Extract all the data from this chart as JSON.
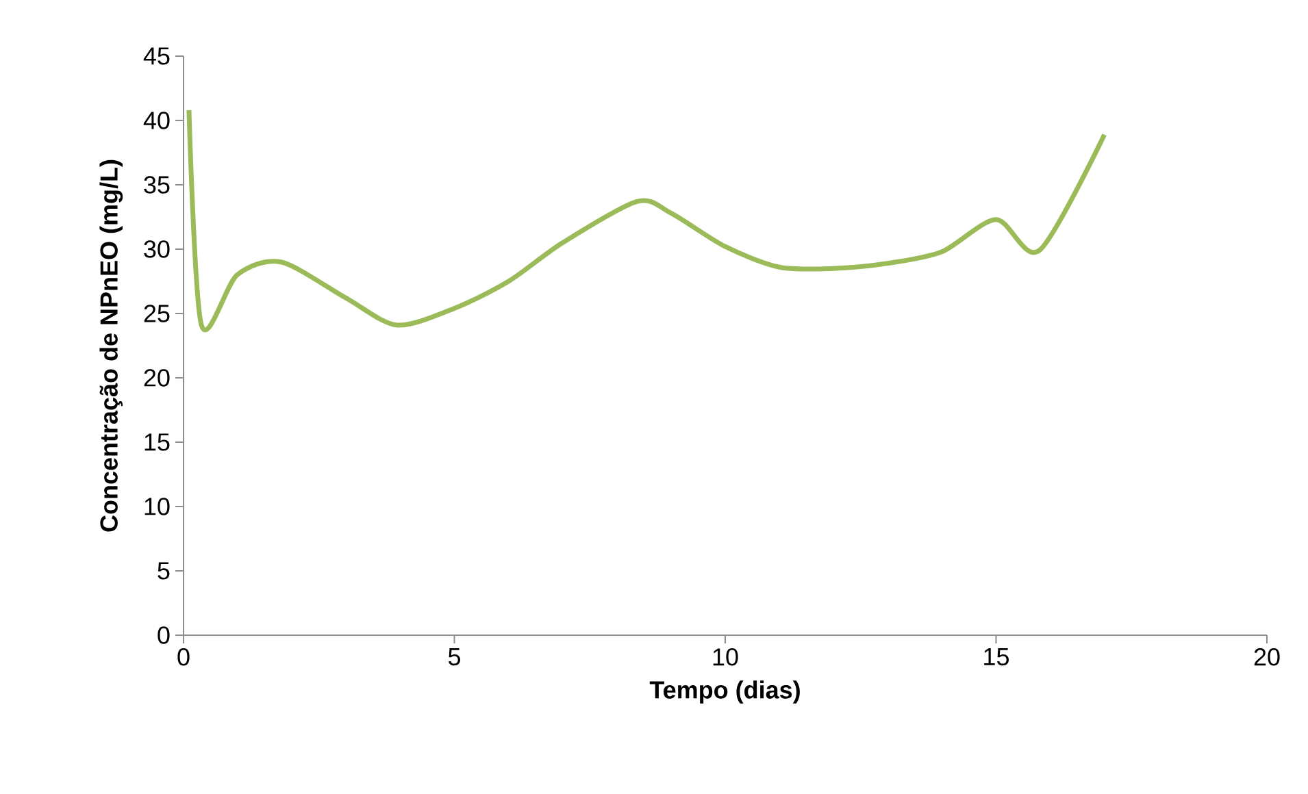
{
  "chart_data": {
    "type": "line",
    "xlabel": "Tempo (dias)",
    "ylabel": "Concentração de NPnEO (mg/L)",
    "x": [
      0.1,
      0.33,
      0.99,
      1.8,
      3.0,
      3.94,
      5.0,
      6.0,
      7.0,
      8.37,
      9.0,
      10.0,
      11.0,
      12.0,
      13.0,
      14.0,
      15.0,
      15.8,
      17.0
    ],
    "series": [
      {
        "color": "#9bbb59",
        "values": [
          40.8,
          24.1,
          28.0,
          29.0,
          26.2,
          24.1,
          25.4,
          27.5,
          30.5,
          33.7,
          32.8,
          30.2,
          28.6,
          28.5,
          28.9,
          29.8,
          32.3,
          29.9,
          38.9
        ]
      }
    ],
    "xlim": [
      0,
      20
    ],
    "xticks": [
      0,
      5,
      10,
      15,
      20
    ],
    "ylim": [
      0,
      45
    ],
    "yticks": [
      0,
      5,
      10,
      15,
      20,
      25,
      30,
      35,
      40,
      45
    ],
    "grid": false,
    "marker": "none",
    "line_style": "solid"
  }
}
